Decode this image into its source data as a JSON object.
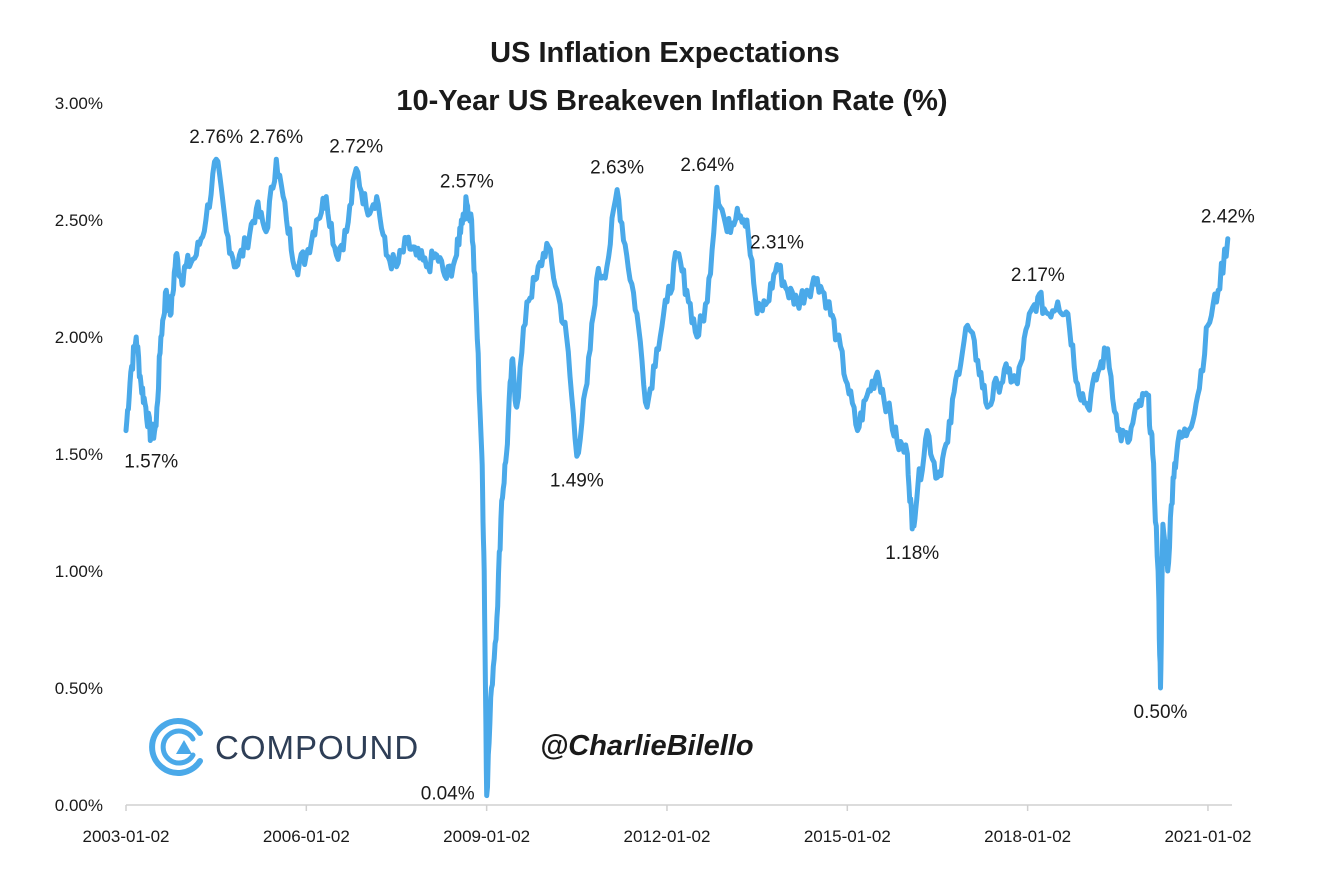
{
  "chart_data": {
    "type": "line",
    "title": "US Inflation Expectations",
    "subtitle": "10-Year US Breakeven Inflation Rate (%)",
    "xlabel": "",
    "ylabel": "",
    "y_ticks": [
      "0.00%",
      "0.50%",
      "1.00%",
      "1.50%",
      "2.00%",
      "2.50%",
      "3.00%"
    ],
    "ylim": [
      0,
      3.0
    ],
    "x_ticks": [
      "2003-01-02",
      "2006-01-02",
      "2009-01-02",
      "2012-01-02",
      "2015-01-02",
      "2018-01-02",
      "2021-01-02"
    ],
    "xlim": [
      2003.0,
      2021.4
    ],
    "grid": false,
    "line_color": "#4aa9e9",
    "series": [
      {
        "x": [
          2003.0,
          2003.08,
          2003.17,
          2003.25,
          2003.33,
          2003.42,
          2003.5,
          2003.58,
          2003.67,
          2003.75,
          2003.83,
          2003.92,
          2004.0,
          2004.17,
          2004.33,
          2004.5,
          2004.67,
          2004.83,
          2005.0,
          2005.17,
          2005.33,
          2005.5,
          2005.67,
          2005.83,
          2006.0,
          2006.17,
          2006.33,
          2006.5,
          2006.67,
          2006.83,
          2007.0,
          2007.17,
          2007.33,
          2007.5,
          2007.67,
          2007.83,
          2008.0,
          2008.17,
          2008.33,
          2008.5,
          2008.58,
          2008.67,
          2008.75,
          2008.83,
          2008.92,
          2008.96,
          2009.0,
          2009.08,
          2009.17,
          2009.25,
          2009.33,
          2009.42,
          2009.5,
          2009.67,
          2009.83,
          2010.0,
          2010.17,
          2010.33,
          2010.5,
          2010.67,
          2010.83,
          2011.0,
          2011.17,
          2011.33,
          2011.5,
          2011.67,
          2011.83,
          2012.0,
          2012.17,
          2012.33,
          2012.5,
          2012.67,
          2012.83,
          2013.0,
          2013.17,
          2013.33,
          2013.5,
          2013.67,
          2013.83,
          2014.0,
          2014.17,
          2014.33,
          2014.5,
          2014.67,
          2014.83,
          2015.0,
          2015.17,
          2015.33,
          2015.5,
          2015.67,
          2015.83,
          2016.0,
          2016.08,
          2016.17,
          2016.33,
          2016.5,
          2016.67,
          2016.83,
          2017.0,
          2017.17,
          2017.33,
          2017.5,
          2017.67,
          2017.83,
          2018.0,
          2018.17,
          2018.33,
          2018.5,
          2018.67,
          2018.83,
          2019.0,
          2019.17,
          2019.33,
          2019.5,
          2019.67,
          2019.83,
          2020.0,
          2020.08,
          2020.17,
          2020.21,
          2020.25,
          2020.33,
          2020.42,
          2020.5,
          2020.67,
          2020.83,
          2021.0,
          2021.17,
          2021.33
        ],
        "y": [
          1.6,
          1.85,
          2.0,
          1.8,
          1.7,
          1.57,
          1.62,
          2.0,
          2.2,
          2.1,
          2.35,
          2.25,
          2.3,
          2.35,
          2.5,
          2.76,
          2.45,
          2.3,
          2.4,
          2.55,
          2.45,
          2.76,
          2.5,
          2.3,
          2.35,
          2.5,
          2.6,
          2.35,
          2.45,
          2.72,
          2.55,
          2.6,
          2.35,
          2.3,
          2.4,
          2.35,
          2.3,
          2.35,
          2.25,
          2.35,
          2.5,
          2.57,
          2.5,
          2.1,
          1.5,
          1.0,
          0.04,
          0.5,
          0.8,
          1.3,
          1.5,
          1.9,
          1.7,
          2.15,
          2.25,
          2.4,
          2.2,
          2.0,
          1.49,
          1.8,
          2.25,
          2.3,
          2.63,
          2.35,
          2.1,
          1.7,
          1.95,
          2.15,
          2.35,
          2.2,
          2.0,
          2.15,
          2.64,
          2.45,
          2.55,
          2.5,
          2.1,
          2.15,
          2.31,
          2.2,
          2.15,
          2.2,
          2.25,
          2.15,
          2.0,
          1.8,
          1.6,
          1.75,
          1.85,
          1.7,
          1.55,
          1.5,
          1.18,
          1.35,
          1.6,
          1.4,
          1.55,
          1.85,
          2.05,
          1.9,
          1.7,
          1.8,
          1.85,
          1.8,
          2.05,
          2.17,
          2.1,
          2.15,
          2.1,
          1.8,
          1.7,
          1.85,
          1.95,
          1.6,
          1.55,
          1.7,
          1.75,
          1.5,
          1.0,
          0.5,
          1.2,
          1.0,
          1.4,
          1.55,
          1.6,
          1.75,
          2.05,
          2.2,
          2.42
        ]
      }
    ],
    "annotations": [
      {
        "x": 2003.42,
        "y": 1.57,
        "label": "1.57%",
        "pos": "below"
      },
      {
        "x": 2004.5,
        "y": 2.76,
        "label": "2.76%",
        "pos": "above"
      },
      {
        "x": 2005.5,
        "y": 2.76,
        "label": "2.76%",
        "pos": "above"
      },
      {
        "x": 2006.83,
        "y": 2.72,
        "label": "2.72%",
        "pos": "above"
      },
      {
        "x": 2008.67,
        "y": 2.57,
        "label": "2.57%",
        "pos": "above"
      },
      {
        "x": 2009.0,
        "y": 0.04,
        "label": "0.04%",
        "pos": "left"
      },
      {
        "x": 2010.5,
        "y": 1.49,
        "label": "1.49%",
        "pos": "below"
      },
      {
        "x": 2011.17,
        "y": 2.63,
        "label": "2.63%",
        "pos": "above"
      },
      {
        "x": 2012.67,
        "y": 2.64,
        "label": "2.64%",
        "pos": "above"
      },
      {
        "x": 2013.83,
        "y": 2.31,
        "label": "2.31%",
        "pos": "above"
      },
      {
        "x": 2016.08,
        "y": 1.18,
        "label": "1.18%",
        "pos": "below"
      },
      {
        "x": 2018.17,
        "y": 2.17,
        "label": "2.17%",
        "pos": "above"
      },
      {
        "x": 2020.21,
        "y": 0.5,
        "label": "0.50%",
        "pos": "below"
      },
      {
        "x": 2021.33,
        "y": 2.42,
        "label": "2.42%",
        "pos": "above"
      }
    ]
  },
  "branding": {
    "logo_text": "COMPOUND",
    "logo_icon": "compound-c-icon",
    "handle": "@CharlieBilello"
  }
}
